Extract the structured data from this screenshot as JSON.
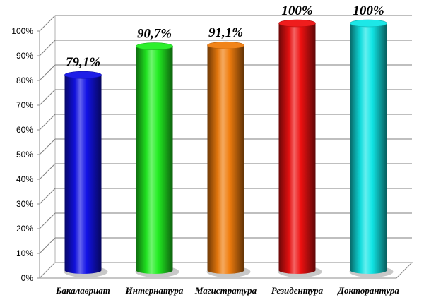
{
  "chart_data": {
    "type": "bar",
    "categories": [
      "Бакалавриат",
      "Интернатура",
      "Магистратура",
      "Резидентура",
      "Докторантура"
    ],
    "values": [
      79.1,
      90.7,
      91.1,
      100,
      100
    ],
    "data_labels": [
      "79,1%",
      "90,7%",
      "91,1%",
      "100%",
      "100%"
    ],
    "colors": [
      "#1212e6",
      "#22ee22",
      "#f07d0e",
      "#ee1111",
      "#11e6e6"
    ],
    "ylim": [
      0,
      100
    ],
    "yticks": [
      "0%",
      "10%",
      "20%",
      "30%",
      "40%",
      "50%",
      "60%",
      "70%",
      "80%",
      "90%",
      "100%"
    ],
    "title": "",
    "xlabel": "",
    "ylabel": "",
    "grid": true,
    "style": "3d-cylinder"
  }
}
